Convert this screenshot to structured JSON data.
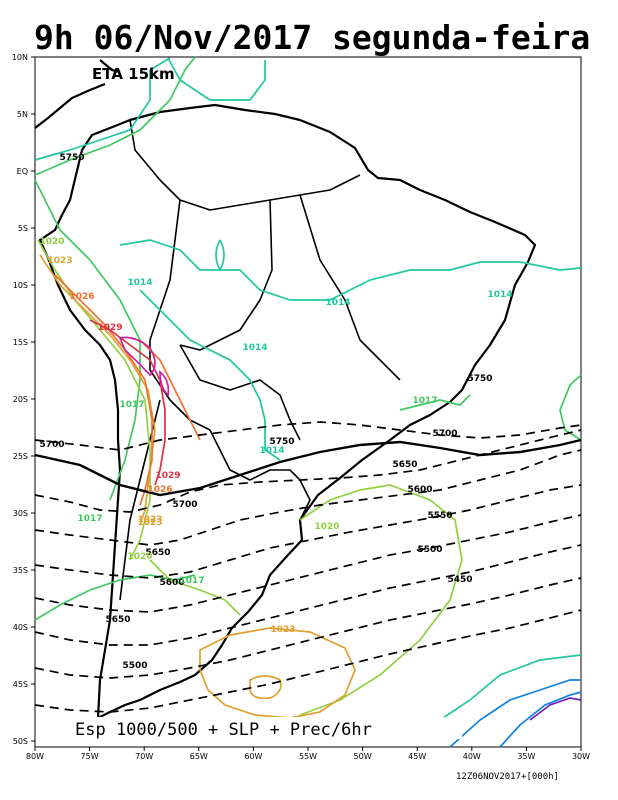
{
  "title": "9h 06/Nov/2017 segunda-feira",
  "model_label": "ETA 15km",
  "footer_caption": "Esp 1000/500 + SLP + Prec/6hr",
  "run_stamp": "12Z06NOV2017+[000h]",
  "lat_ticks": [
    "10N",
    "5N",
    "EQ",
    "5S",
    "10S",
    "15S",
    "20S",
    "25S",
    "30S",
    "35S",
    "40S",
    "45S",
    "50S"
  ],
  "lon_ticks": [
    "80W",
    "75W",
    "70W",
    "65W",
    "60W",
    "55W",
    "50W",
    "45W",
    "40W",
    "35W",
    "30W"
  ],
  "thickness_labels": [
    "5750",
    "5700",
    "5750",
    "5700",
    "5750",
    "5650",
    "5600",
    "5550",
    "5500",
    "5450",
    "5700",
    "5650",
    "5600",
    "5650",
    "5500"
  ],
  "pressure_labels": [
    "1014",
    "1014",
    "1014",
    "1014",
    "1014",
    "1017",
    "1017",
    "1017",
    "1017",
    "1020",
    "1020",
    "1023",
    "1023",
    "1023",
    "1026",
    "1029",
    "1029",
    "1026",
    "1020",
    "1023"
  ],
  "colors": {
    "thickness": "#000000",
    "isobar_1014": "#20c8a0",
    "isobar_1017": "#40c860",
    "isobar_1020": "#90d040",
    "isobar_1023": "#e0a030",
    "isobar_1026": "#f07030",
    "isobar_1029": "#e03040",
    "isobar_high": "#d020a0",
    "low_blue": "#1080e0",
    "low_purple": "#7020c0"
  }
}
